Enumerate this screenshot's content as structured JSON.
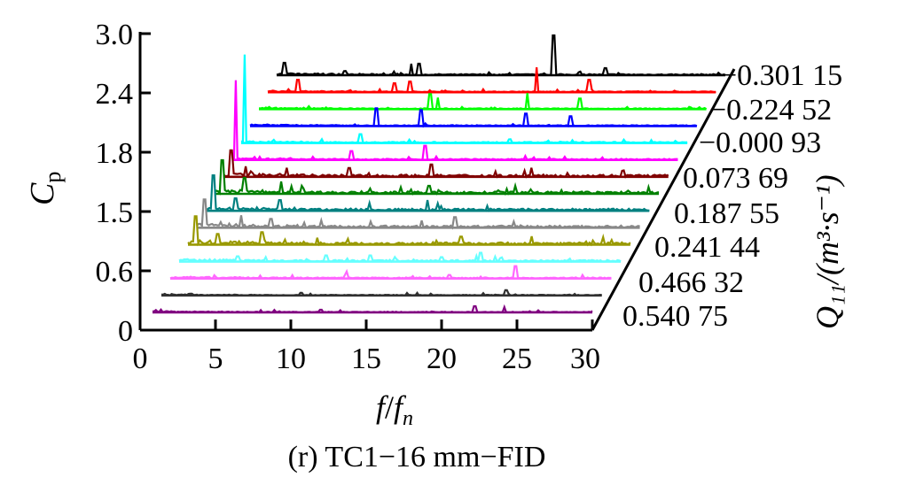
{
  "chart_data": {
    "type": "line",
    "subtype": "waterfall-3d",
    "caption": "(r) TC1−16 mm−FID",
    "x_axis": {
      "label_main": "f",
      "label_slash": "/",
      "label_base": "f",
      "label_sub": "n",
      "ticks": [
        "0",
        "5",
        "10",
        "15",
        "20",
        "25",
        "30"
      ],
      "range": [
        0,
        30
      ]
    },
    "y_axis": {
      "label_main": "C",
      "label_sub": "p",
      "ticks": [
        "0",
        "0.6",
        "1.5",
        "1.8",
        "2.4",
        "3.0"
      ]
    },
    "z_axis": {
      "label": "Q₁₁/(m³·s⁻¹)",
      "tick_labels": [
        "−0.301 15",
        "−0.224 52",
        "−0.000 93",
        "0.073 69",
        "0.187 55",
        "0.241 44",
        "0.466 32",
        "0.540 75"
      ]
    },
    "series": [
      {
        "color": "#800080",
        "noise": 0.8,
        "peaks": [
          [
            22,
            7
          ],
          [
            24,
            6
          ],
          [
            11.5,
            3
          ]
        ]
      },
      {
        "color": "#303030",
        "noise": 0.8,
        "peaks": [
          [
            23.5,
            6
          ],
          [
            9.5,
            3
          ],
          [
            2,
            2
          ]
        ]
      },
      {
        "color": "#ff66ff",
        "noise": 1.2,
        "peaks": [
          [
            23.5,
            14
          ],
          [
            12,
            8
          ],
          [
            19,
            4
          ]
        ]
      },
      {
        "color": "#66ffff",
        "noise": 1.8,
        "peaks": [
          [
            20.5,
            10
          ],
          [
            10,
            7
          ],
          [
            4,
            6
          ],
          [
            13,
            7
          ]
        ]
      },
      {
        "color": "#999900",
        "noise": 2.6,
        "peaks": [
          [
            0.5,
            32
          ],
          [
            5,
            14
          ],
          [
            18.5,
            9
          ],
          [
            2,
            12
          ]
        ]
      },
      {
        "color": "#888888",
        "noise": 2.4,
        "peaks": [
          [
            0.5,
            32
          ],
          [
            17.5,
            12
          ],
          [
            3,
            14
          ],
          [
            5,
            10
          ]
        ]
      },
      {
        "color": "#008080",
        "noise": 2.4,
        "peaks": [
          [
            0.5,
            40
          ],
          [
            15,
            12
          ],
          [
            2,
            14
          ],
          [
            5,
            12
          ]
        ]
      },
      {
        "color": "#008000",
        "noise": 2.6,
        "peaks": [
          [
            0.5,
            38
          ],
          [
            14.5,
            9
          ],
          [
            2,
            18
          ],
          [
            4.5,
            14
          ],
          [
            10.5,
            6
          ]
        ]
      },
      {
        "color": "#800000",
        "noise": 2.6,
        "peaks": [
          [
            0.5,
            30
          ],
          [
            14,
            14
          ],
          [
            1.5,
            12
          ],
          [
            8.5,
            10
          ]
        ]
      },
      {
        "color": "#ff00ff",
        "noise": 1.2,
        "peaks": [
          [
            0.2,
            90
          ],
          [
            13,
            16
          ],
          [
            8,
            10
          ]
        ]
      },
      {
        "color": "#00ffff",
        "noise": 1.2,
        "peaks": [
          [
            0.2,
            100
          ],
          [
            8,
            10
          ]
        ]
      },
      {
        "color": "#0000ff",
        "noise": 1.0,
        "peaks": [
          [
            8.5,
            20
          ],
          [
            11.5,
            18
          ],
          [
            18.5,
            14
          ],
          [
            21.5,
            11
          ]
        ]
      },
      {
        "color": "#00ff00",
        "noise": 0.9,
        "peaks": [
          [
            11.5,
            17
          ],
          [
            18,
            18
          ],
          [
            12,
            13
          ],
          [
            21.5,
            12
          ]
        ]
      },
      {
        "color": "#ff0000",
        "noise": 0.9,
        "peaks": [
          [
            18,
            28
          ],
          [
            21.5,
            14
          ],
          [
            2,
            14
          ],
          [
            9.5,
            12
          ],
          [
            8.5,
            10
          ]
        ]
      },
      {
        "color": "#000000",
        "noise": 1.3,
        "peaks": [
          [
            18.5,
            45
          ],
          [
            9,
            13
          ],
          [
            9.5,
            13
          ],
          [
            22,
            8
          ],
          [
            0.5,
            14
          ]
        ]
      }
    ]
  }
}
